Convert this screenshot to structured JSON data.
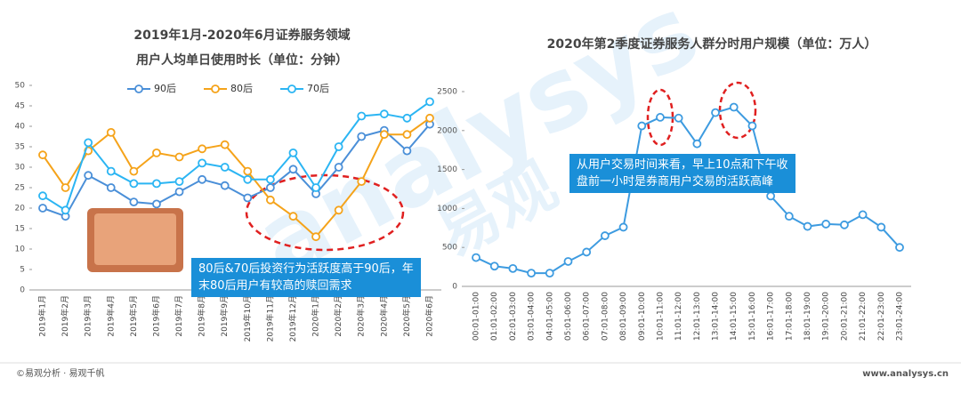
{
  "chart_data": [
    {
      "type": "line",
      "title": [
        "2019年1月-2020年6月证券服务领域",
        "用户人均单日使用时长（单位：分钟）"
      ],
      "categories": [
        "2019年1月",
        "2019年2月",
        "2019年3月",
        "2019年4月",
        "2019年5月",
        "2019年6月",
        "2019年7月",
        "2019年8月",
        "2019年9月",
        "2019年10月",
        "2019年11月",
        "2019年12月",
        "2020年1月",
        "2020年2月",
        "2020年3月",
        "2020年4月",
        "2020年5月",
        "2020年6月"
      ],
      "series": [
        {
          "name": "90后",
          "color": "#4a8fd8",
          "values": [
            20,
            18,
            28,
            25,
            21.5,
            21,
            24,
            27,
            25.5,
            22.5,
            25,
            29.5,
            23.5,
            30,
            37.5,
            39,
            34,
            40.5
          ]
        },
        {
          "name": "80后",
          "color": "#f5a31a",
          "values": [
            33,
            25,
            34,
            38.5,
            29,
            33.5,
            32.5,
            34.5,
            35.5,
            29,
            22,
            18,
            13,
            19.5,
            26.5,
            38,
            38,
            42
          ]
        },
        {
          "name": "70后",
          "color": "#2bb5f3",
          "values": [
            23,
            19.5,
            36,
            29,
            26,
            26,
            26.5,
            31,
            30,
            27,
            27,
            33.5,
            25,
            35,
            42.5,
            43,
            42,
            46
          ]
        }
      ],
      "ylim": [
        0,
        50
      ],
      "yticks": [
        0,
        5,
        10,
        15,
        20,
        25,
        30,
        35,
        40,
        45,
        50
      ],
      "grid": false,
      "legend": "top",
      "annotation": [
        "80后&70后投资行为活跃度高于90后，年",
        "末80后用户有较高的赎回需求"
      ]
    },
    {
      "type": "line",
      "title": [
        "2020年第2季度证券服务人群分时用户规模（单位：万人）"
      ],
      "categories": [
        "00:01-01:00",
        "01:01-02:00",
        "02:01-03:00",
        "03:01-04:00",
        "04:01-05:00",
        "05:01-06:00",
        "06:01-07:00",
        "07:01-08:00",
        "08:01-09:00",
        "09:01-10:00",
        "10:01-11:00",
        "11:01-12:00",
        "12:01-13:00",
        "13:01-14:00",
        "14:01-15:00",
        "15:01-16:00",
        "16:01-17:00",
        "17:01-18:00",
        "18:01-19:00",
        "19:01-20:00",
        "20:01-21:00",
        "21:01-22:00",
        "22:01-23:00",
        "23:01-24:00"
      ],
      "values": [
        370,
        260,
        230,
        170,
        170,
        320,
        440,
        650,
        760,
        2060,
        2170,
        2160,
        1830,
        2230,
        2300,
        2060,
        1160,
        900,
        770,
        800,
        790,
        920,
        760,
        500
      ],
      "color": "#3d9be0",
      "ylim": [
        0,
        2500
      ],
      "yticks": [
        0,
        500,
        1000,
        1500,
        2000,
        2500
      ],
      "grid": false,
      "annotation": [
        "从用户交易时间来看，早上10点和下午收",
        "盘前一小时是券商用户交易的活跃高峰"
      ]
    }
  ],
  "footer": {
    "left": "©易观分析 · 易观千帆",
    "right": "www.analysys.cn"
  },
  "watermark": [
    "analysys",
    "易观"
  ]
}
